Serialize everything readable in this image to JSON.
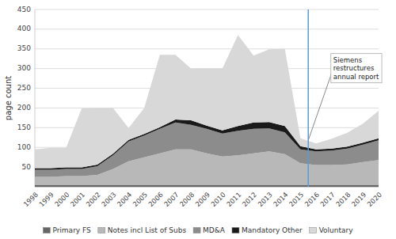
{
  "chart_data": {
    "type": "area",
    "stacked": true,
    "ylabel": "page count",
    "x": [
      1998,
      1999,
      2000,
      2001,
      2002,
      2003,
      2004,
      2005,
      2006,
      2007,
      2008,
      2009,
      2010,
      2011,
      2012,
      2013,
      2014,
      2015,
      2016,
      2017,
      2018,
      2019,
      2020
    ],
    "series": [
      {
        "name": "Primary FS",
        "color": "#666666",
        "values": [
          5,
          5,
          5,
          5,
          5,
          5,
          5,
          5,
          5,
          5,
          5,
          5,
          5,
          5,
          5,
          5,
          5,
          5,
          5,
          5,
          5,
          5,
          5
        ]
      },
      {
        "name": "Notes incl List of Subs",
        "color": "#b8b8b8",
        "values": [
          20,
          20,
          22,
          22,
          25,
          40,
          60,
          70,
          80,
          90,
          90,
          80,
          72,
          75,
          80,
          85,
          78,
          55,
          50,
          50,
          52,
          58,
          63
        ]
      },
      {
        "name": "MD&A",
        "color": "#8c8c8c",
        "values": [
          18,
          18,
          18,
          18,
          22,
          35,
          50,
          55,
          62,
          68,
          62,
          62,
          58,
          62,
          62,
          58,
          55,
          35,
          35,
          37,
          40,
          44,
          50
        ]
      },
      {
        "name": "Mandatory Other",
        "color": "#1a1a1a",
        "values": [
          4,
          4,
          4,
          4,
          4,
          4,
          4,
          4,
          4,
          8,
          12,
          8,
          8,
          12,
          16,
          16,
          16,
          8,
          5,
          5,
          5,
          5,
          5
        ]
      },
      {
        "name": "Voluntary",
        "color": "#d8d8d8",
        "values": [
          48,
          52,
          50,
          150,
          144,
          116,
          30,
          66,
          184,
          164,
          131,
          145,
          157,
          231,
          170,
          185,
          196,
          20,
          15,
          25,
          35,
          48,
          70
        ]
      }
    ],
    "xlim": [
      1998,
      2020
    ],
    "xticks": [
      1998,
      1999,
      2000,
      2001,
      2002,
      2003,
      2004,
      2005,
      2006,
      2007,
      2008,
      2009,
      2010,
      2011,
      2012,
      2013,
      2014,
      2015,
      2016,
      2017,
      2018,
      2019,
      2020
    ],
    "ylim": [
      0,
      450
    ],
    "yticks": [
      50,
      100,
      150,
      200,
      250,
      300,
      350,
      400,
      450
    ],
    "grid": "y",
    "legend": "bottom",
    "vlines": [
      {
        "x": 2015.5,
        "color": "#5b9bd5"
      }
    ],
    "annotations": [
      {
        "text": "Siemens\nrestructures\nannual report",
        "x": 2015.5,
        "y": 118,
        "text_x": 2017.1,
        "text_y": 300
      }
    ]
  }
}
